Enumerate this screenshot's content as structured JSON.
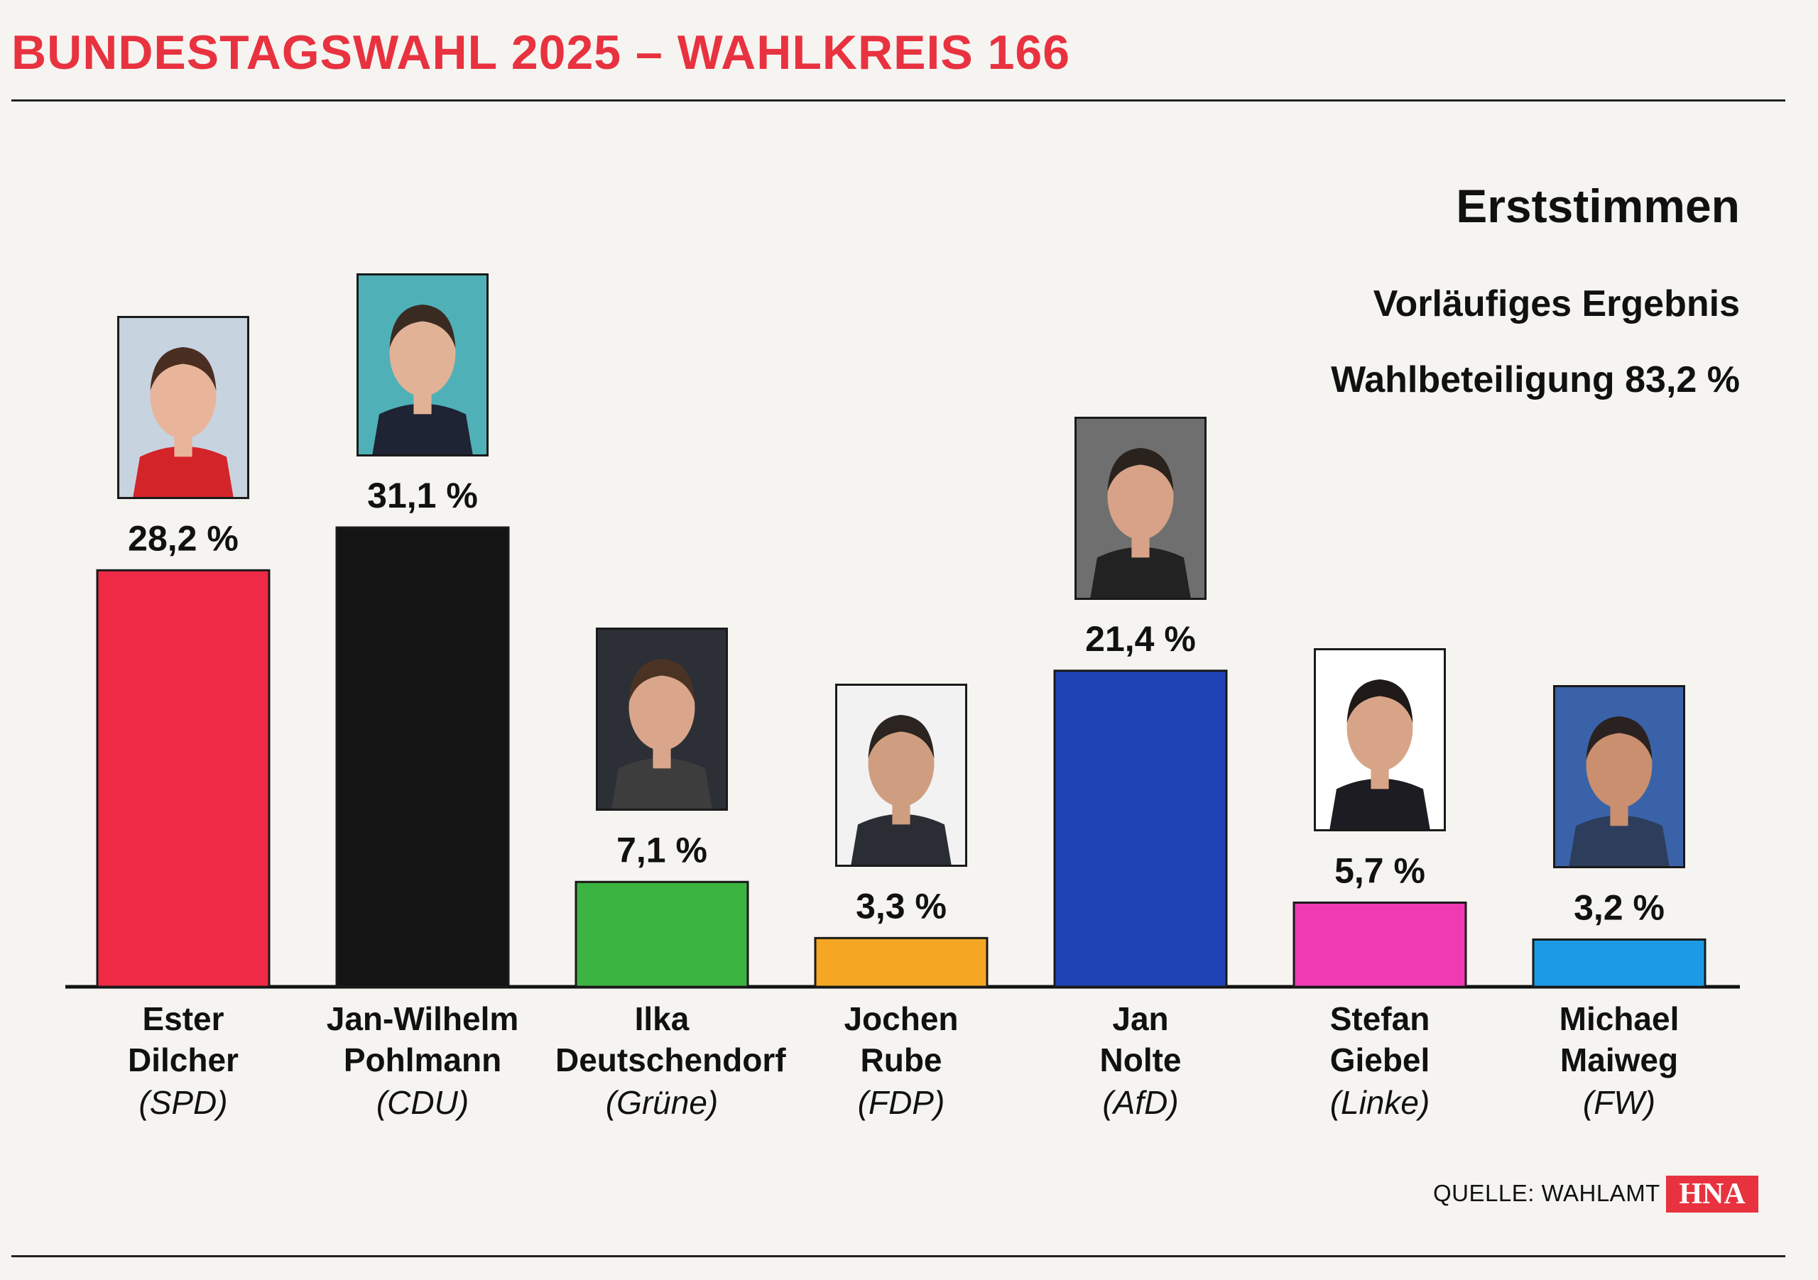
{
  "header": {
    "headline": "BUNDESTAGSWAHL 2025 – WAHLKREIS 166"
  },
  "meta": {
    "title": "Erststimmen",
    "subtitle": "Vorläufiges Ergebnis",
    "turnout": "Wahlbeteiligung 83,2 %"
  },
  "footer": {
    "source": "QUELLE: WAHLAMT",
    "logo": "HNA"
  },
  "chart_data": {
    "type": "bar",
    "title": "Erststimmen",
    "subtitle": "Vorläufiges Ergebnis",
    "categories": [
      "Ester Dilcher",
      "Jan-Wilhelm Pohlmann",
      "Ilka Deutschendorf",
      "Jochen Rube",
      "Jan Nolte",
      "Stefan Giebel",
      "Michael Maiweg"
    ],
    "values": [
      28.2,
      31.1,
      7.1,
      3.3,
      21.4,
      5.7,
      3.2
    ],
    "value_labels": [
      "28,2 %",
      "31,1 %",
      "7,1 %",
      "3,3 %",
      "21,4 %",
      "5,7 %",
      "3,2 %"
    ],
    "parties": [
      "(SPD)",
      "(CDU)",
      "(Grüne)",
      "(FDP)",
      "(AfD)",
      "(Linke)",
      "(FW)"
    ],
    "colors": [
      "#ee2a47",
      "#141414",
      "#3cb441",
      "#f5a623",
      "#1f43b4",
      "#f03ab4",
      "#1c9be4"
    ],
    "candidates": [
      {
        "first": "Ester",
        "last": "Dilcher",
        "party": "(SPD)"
      },
      {
        "first": "Jan-Wilhelm",
        "last": "Pohlmann",
        "party": "(CDU)"
      },
      {
        "first": "Ilka",
        "last": "Deutschendorf",
        "party": "(Grüne)"
      },
      {
        "first": "Jochen",
        "last": "Rube",
        "party": "(FDP)"
      },
      {
        "first": "Jan",
        "last": "Nolte",
        "party": "(AfD)"
      },
      {
        "first": "Stefan",
        "last": "Giebel",
        "party": "(Linke)"
      },
      {
        "first": "Michael",
        "last": "Maiweg",
        "party": "(FW)"
      }
    ],
    "xlabel": "",
    "ylabel": "",
    "ylim": [
      0,
      31.1
    ],
    "grid": false,
    "legend": "none"
  }
}
